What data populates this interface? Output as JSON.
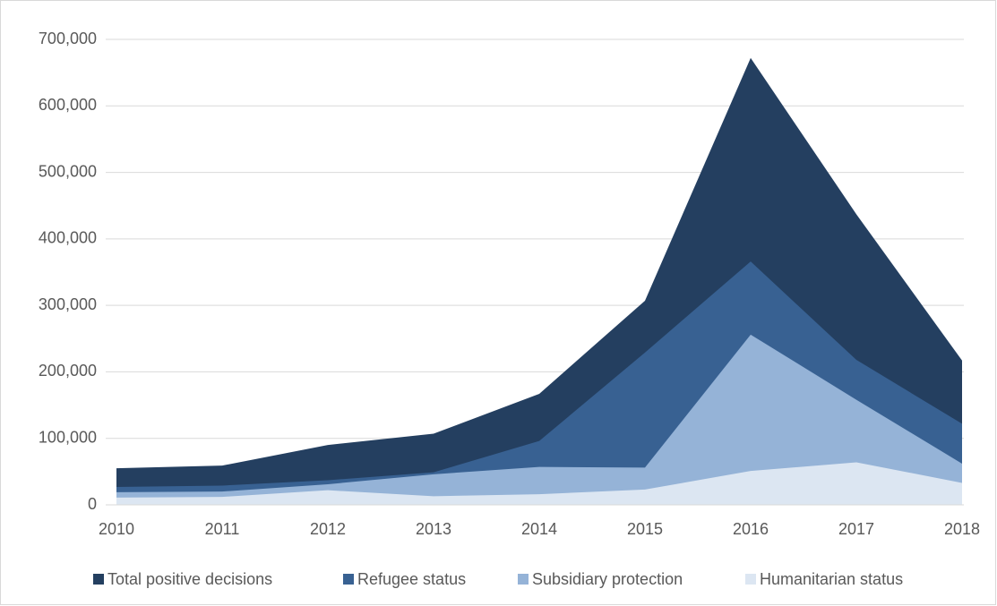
{
  "chart_data": {
    "type": "area",
    "categories": [
      "2010",
      "2011",
      "2012",
      "2013",
      "2014",
      "2015",
      "2016",
      "2017",
      "2018"
    ],
    "series": [
      {
        "name": "Total positive decisions",
        "color": "#243f60",
        "values": [
          55000,
          59000,
          90000,
          107000,
          167000,
          307000,
          672000,
          437000,
          217000
        ]
      },
      {
        "name": "Refugee status",
        "color": "#386192",
        "values": [
          27000,
          29000,
          37000,
          49000,
          96000,
          229000,
          366000,
          218000,
          122000
        ]
      },
      {
        "name": "Subsidiary protection",
        "color": "#95b3d7",
        "values": [
          19000,
          20000,
          31000,
          46000,
          57000,
          56000,
          256000,
          158000,
          62000
        ]
      },
      {
        "name": "Humanitarian status",
        "color": "#dce6f2",
        "values": [
          11000,
          12000,
          22000,
          13000,
          16000,
          23000,
          51000,
          64000,
          33000
        ]
      }
    ],
    "ylim": [
      0,
      700000
    ],
    "yticks": [
      0,
      {
        "value": 100000,
        "label": "100,000"
      },
      {
        "value": 200000,
        "label": "200,000"
      },
      {
        "value": 300000,
        "label": "300,000"
      },
      {
        "value": 400000,
        "label": "400,000"
      },
      {
        "value": 500000,
        "label": "500,000"
      },
      {
        "value": 600000,
        "label": "600,000"
      },
      {
        "value": 700000,
        "label": "700,000"
      }
    ],
    "grid": true,
    "legend": "bottom"
  }
}
